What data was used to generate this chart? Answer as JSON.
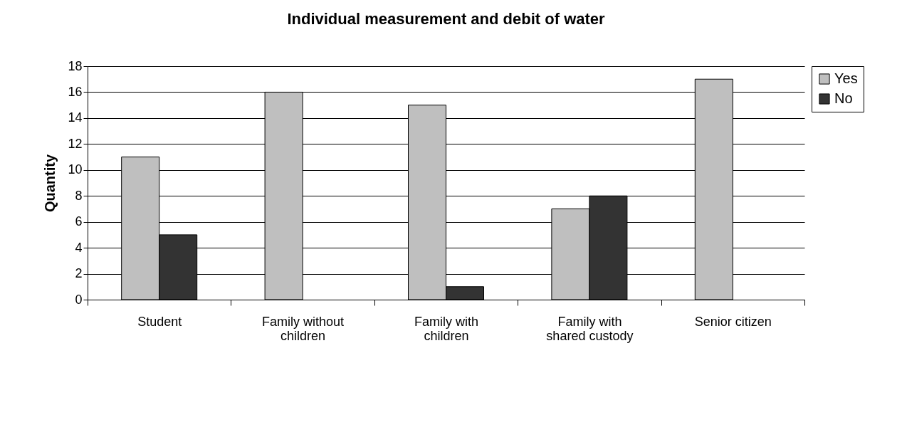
{
  "chart_data": {
    "type": "bar",
    "title": "Individual measurement and debit of water",
    "ylabel": "Quantity",
    "categories": [
      "Student",
      "Family without children",
      "Family with children",
      "Family with shared custody",
      "Senior citizen"
    ],
    "series": [
      {
        "name": "Yes",
        "color": "#bfbfbf",
        "values": [
          11,
          16,
          15,
          7,
          17
        ]
      },
      {
        "name": "No",
        "color": "#333333",
        "values": [
          5,
          0,
          1,
          8,
          0
        ]
      }
    ],
    "ylim": [
      0,
      18
    ],
    "yticks": [
      0,
      2,
      4,
      6,
      8,
      10,
      12,
      14,
      16,
      18
    ],
    "grid": "y",
    "legend": "right"
  }
}
